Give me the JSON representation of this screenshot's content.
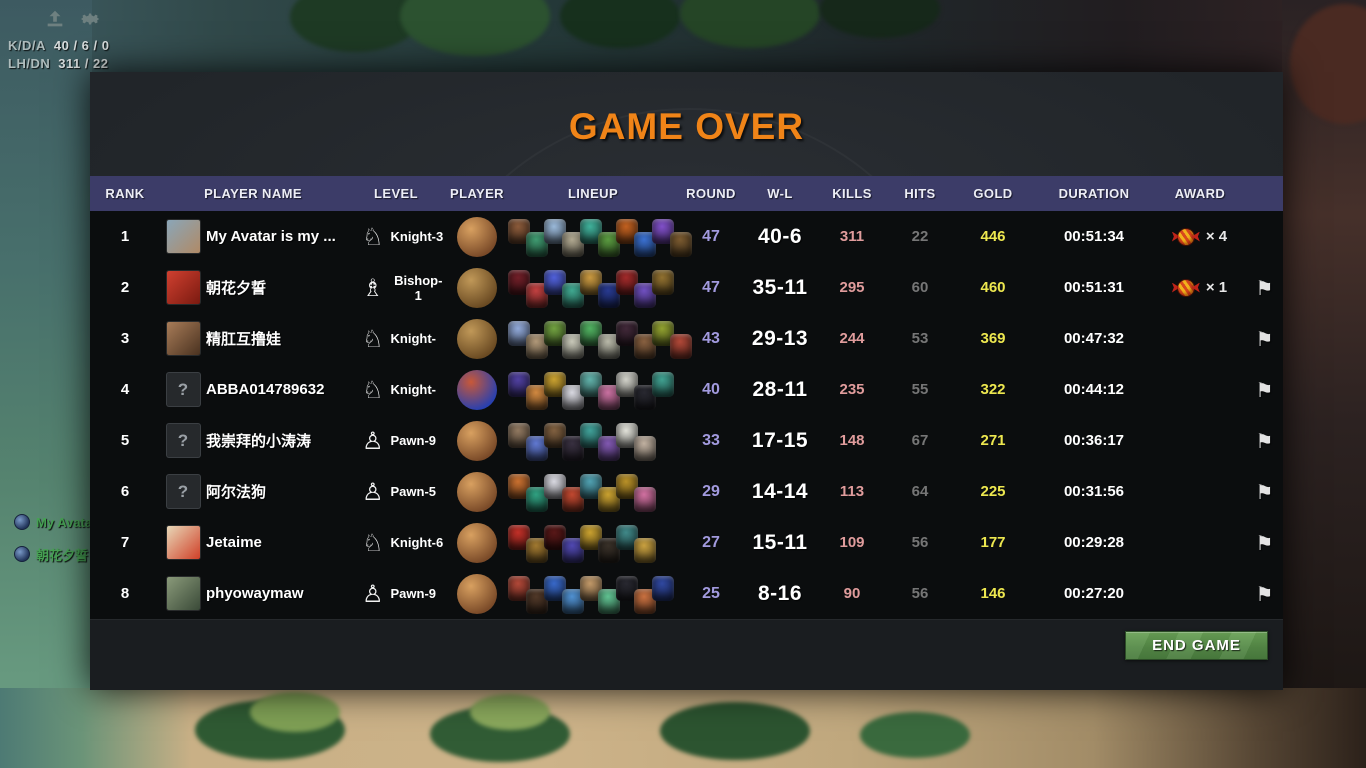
{
  "hud": {
    "kda_label": "K/D/A",
    "kda_value": "40 / 6 / 0",
    "lhdn_label": "LH/DN",
    "lhdn_value": "311 / 22"
  },
  "chat": [
    {
      "name": "My Avatar"
    },
    {
      "name": "朝花夕誓"
    }
  ],
  "panel": {
    "title": "GAME OVER",
    "end_game_label": "END GAME",
    "columns": {
      "rank": "RANK",
      "player_name": "PLAYER NAME",
      "level": "LEVEL",
      "player": "PLAYER",
      "lineup": "LINEUP",
      "round": "ROUND",
      "wl": "W-L",
      "kills": "KILLS",
      "hits": "HITS",
      "gold": "GOLD",
      "duration": "DURATION",
      "award": "AWARD"
    }
  },
  "colors": {
    "title_orange": "#f08418",
    "header_bg": "#3c3c68",
    "round": "#a29ade",
    "kills": "#e09c9c",
    "hits": "#767676",
    "gold": "#ede74f",
    "button_green": "#5d9150",
    "chat_green": "#46a153"
  },
  "rows": [
    {
      "rank": "1",
      "name": "My Avatar is my ...",
      "avatar": {
        "kind": "photo",
        "c1": "#8aa6b8",
        "c2": "#b08a66"
      },
      "piece": "knight",
      "level": "Knight-3",
      "courier": [
        "#d8a060",
        "#7a4a28"
      ],
      "lineup": [
        "#8a5a3a",
        "#3f9a70",
        "#9ab8d8",
        "#b0a890",
        "#40b09a",
        "#5a9a40",
        "#c06020",
        "#3a70d0",
        "#8050c8",
        "#7a5a30"
      ],
      "round": "47",
      "wl": "40-6",
      "kills": "311",
      "hits": "22",
      "gold": "446",
      "duration": "00:51:34",
      "candy": "× 4",
      "flag": false
    },
    {
      "rank": "2",
      "name": "朝花夕誓",
      "avatar": {
        "kind": "photo",
        "c1": "#d04030",
        "c2": "#7a1a10"
      },
      "piece": "bishop",
      "level": "Bishop-1",
      "courier": [
        "#c09858",
        "#6a4a22"
      ],
      "lineup": [
        "#701f28",
        "#c04040",
        "#5060d8",
        "#40a890",
        "#c89840",
        "#283a90",
        "#a02a2a",
        "#7050c0",
        "#907030"
      ],
      "round": "47",
      "wl": "35-11",
      "kills": "295",
      "hits": "60",
      "gold": "460",
      "duration": "00:51:31",
      "candy": "× 1",
      "flag": true
    },
    {
      "rank": "3",
      "name": "精肛互撸娃",
      "avatar": {
        "kind": "photo",
        "c1": "#a87c58",
        "c2": "#4a3220"
      },
      "piece": "knight",
      "level": "Knight-",
      "courier": [
        "#c09858",
        "#6a4a22"
      ],
      "lineup": [
        "#90a8d8",
        "#b09878",
        "#70a040",
        "#c8c8b8",
        "#50b060",
        "#b8b8a8",
        "#402838",
        "#886040",
        "#90a030",
        "#b04838"
      ],
      "round": "43",
      "wl": "29-13",
      "kills": "244",
      "hits": "53",
      "gold": "369",
      "duration": "00:47:32",
      "candy": null,
      "flag": true
    },
    {
      "rank": "4",
      "name": "ABBA014789632",
      "avatar": {
        "kind": "unknown"
      },
      "piece": "knight",
      "level": "Knight-",
      "courier": [
        "#c85838",
        "#2840b0"
      ],
      "lineup": [
        "#5040a0",
        "#d08840",
        "#c8a030",
        "#d8d8e0",
        "#60b0a8",
        "#c870a0",
        "#d0d0c8",
        "#282830",
        "#40a090"
      ],
      "round": "40",
      "wl": "28-11",
      "kills": "235",
      "hits": "55",
      "gold": "322",
      "duration": "00:44:12",
      "candy": null,
      "flag": true
    },
    {
      "rank": "5",
      "name": "我崇拜的小涛涛",
      "avatar": {
        "kind": "unknown"
      },
      "piece": "pawn",
      "level": "Pawn-9",
      "courier": [
        "#d8a060",
        "#7a4a28"
      ],
      "lineup": [
        "#907860",
        "#6078d0",
        "#806040",
        "#383040",
        "#40a098",
        "#8058b0",
        "#e0e0d8",
        "#c0b0a0"
      ],
      "round": "33",
      "wl": "17-15",
      "kills": "148",
      "hits": "67",
      "gold": "271",
      "duration": "00:36:17",
      "candy": null,
      "flag": true
    },
    {
      "rank": "6",
      "name": "阿尔法狗",
      "avatar": {
        "kind": "unknown"
      },
      "piece": "pawn",
      "level": "Pawn-5",
      "courier": [
        "#d8a060",
        "#7a4a28"
      ],
      "lineup": [
        "#c87030",
        "#30a080",
        "#d8d8e0",
        "#c04830",
        "#50a0b0",
        "#c8a030",
        "#b89028",
        "#d070a0"
      ],
      "round": "29",
      "wl": "14-14",
      "kills": "113",
      "hits": "64",
      "gold": "225",
      "duration": "00:31:56",
      "candy": null,
      "flag": true
    },
    {
      "rank": "7",
      "name": "Jetaime",
      "avatar": {
        "kind": "photo",
        "c1": "#e8d8b8",
        "c2": "#d04028"
      },
      "piece": "knight",
      "level": "Knight-6",
      "courier": [
        "#d8a060",
        "#7a4a28"
      ],
      "lineup": [
        "#c03028",
        "#a07830",
        "#581818",
        "#5048b0",
        "#c8a030",
        "#383028",
        "#408888",
        "#c8a040"
      ],
      "round": "27",
      "wl": "15-11",
      "kills": "109",
      "hits": "56",
      "gold": "177",
      "duration": "00:29:28",
      "candy": null,
      "flag": true
    },
    {
      "rank": "8",
      "name": "phyowaymaw",
      "avatar": {
        "kind": "photo",
        "c1": "#8a9a7a",
        "c2": "#3a4a38"
      },
      "piece": "pawn",
      "level": "Pawn-9",
      "courier": [
        "#d8a060",
        "#7a4a28"
      ],
      "lineup": [
        "#b04838",
        "#503828",
        "#3868c8",
        "#5090d0",
        "#c09868",
        "#60c090",
        "#282830",
        "#c87040",
        "#3048a0"
      ],
      "round": "25",
      "wl": "8-16",
      "kills": "90",
      "hits": "56",
      "gold": "146",
      "duration": "00:27:20",
      "candy": null,
      "flag": true
    }
  ]
}
